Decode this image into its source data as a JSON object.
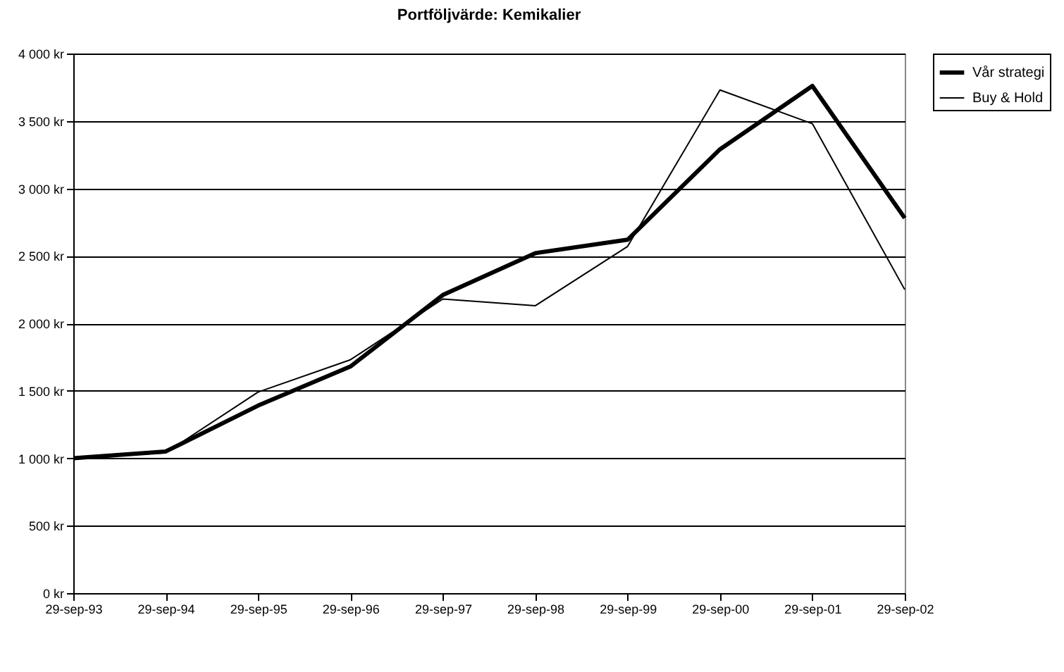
{
  "chart_data": {
    "type": "line",
    "title": "Portföljvärde: Kemikalier",
    "categories": [
      "29-sep-93",
      "29-sep-94",
      "29-sep-95",
      "29-sep-96",
      "29-sep-97",
      "29-sep-98",
      "29-sep-99",
      "29-sep-00",
      "29-sep-01",
      "29-sep-02"
    ],
    "series": [
      {
        "name": "Vår strategi",
        "color": "#000000",
        "values": [
          1000,
          1050,
          1390,
          1680,
          2210,
          2520,
          2620,
          3290,
          3760,
          2780
        ]
      },
      {
        "name": "Buy & Hold",
        "color": "#000000",
        "values": [
          1000,
          1040,
          1490,
          1730,
          2180,
          2130,
          2570,
          3730,
          3480,
          2250
        ]
      }
    ],
    "ylim": [
      0,
      4000
    ],
    "yticks": [
      {
        "value": 0,
        "label": "0 kr"
      },
      {
        "value": 500,
        "label": "500 kr"
      },
      {
        "value": 1000,
        "label": "1 000 kr"
      },
      {
        "value": 1500,
        "label": "1 500 kr"
      },
      {
        "value": 2000,
        "label": "2 000 kr"
      },
      {
        "value": 2500,
        "label": "2 500 kr"
      },
      {
        "value": 3000,
        "label": "3 000 kr"
      },
      {
        "value": 3500,
        "label": "3 500 kr"
      },
      {
        "value": 4000,
        "label": "4 000 kr"
      }
    ],
    "grid": "y",
    "legend": "right",
    "marker": "none",
    "line_style": "solid"
  }
}
